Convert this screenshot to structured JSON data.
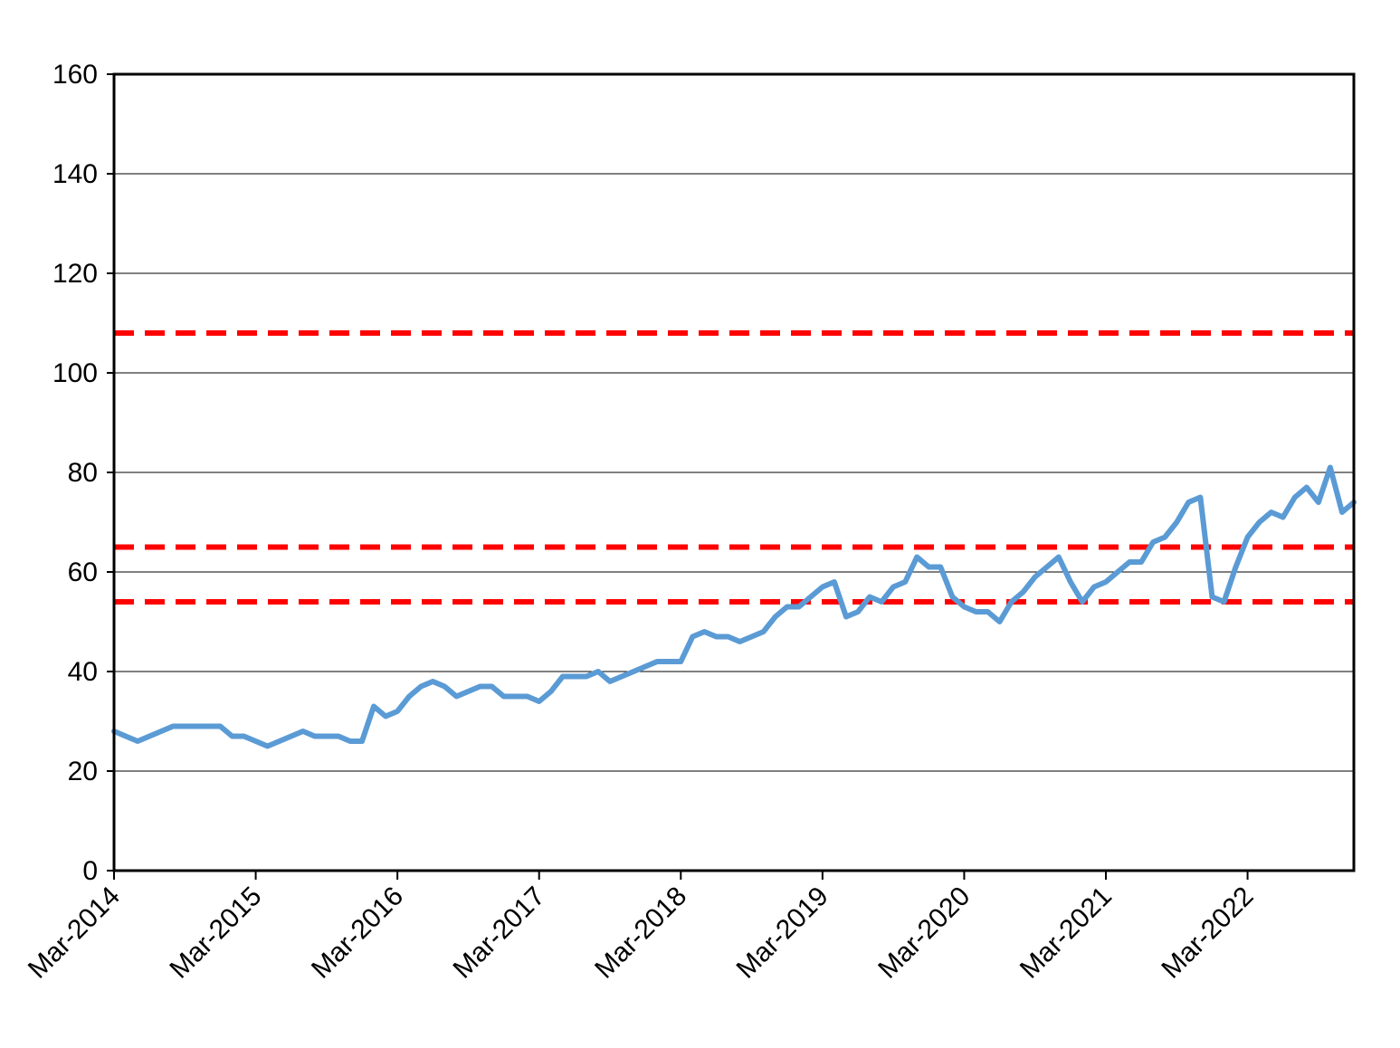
{
  "chart_data": {
    "type": "line",
    "title": "",
    "xlabel": "",
    "ylabel": "",
    "ylim": [
      0,
      160
    ],
    "y_ticks": [
      0,
      20,
      40,
      60,
      80,
      100,
      120,
      140,
      160
    ],
    "y_tick_labels": [
      "0",
      "20",
      "40",
      "60",
      "80",
      "100",
      "120",
      "140",
      "160"
    ],
    "x_range": [
      "2014-03",
      "2022-12"
    ],
    "x_ticks": [
      "2014-03",
      "2015-03",
      "2016-03",
      "2017-03",
      "2018-03",
      "2019-03",
      "2020-03",
      "2021-03",
      "2022-03"
    ],
    "x_tick_labels": [
      "Mar-2014",
      "Mar-2015",
      "Mar-2016",
      "Mar-2017",
      "Mar-2018",
      "Mar-2019",
      "Mar-2020",
      "Mar-2021",
      "Mar-2022"
    ],
    "grid": "horizontal",
    "legend": "none",
    "series": [
      {
        "color": "#5b9bd5",
        "points": [
          [
            "2014-03",
            28
          ],
          [
            "2014-04",
            27
          ],
          [
            "2014-05",
            26
          ],
          [
            "2014-06",
            27
          ],
          [
            "2014-07",
            28
          ],
          [
            "2014-08",
            29
          ],
          [
            "2014-09",
            29
          ],
          [
            "2014-10",
            29
          ],
          [
            "2014-11",
            29
          ],
          [
            "2014-12",
            29
          ],
          [
            "2015-01",
            27
          ],
          [
            "2015-02",
            27
          ],
          [
            "2015-03",
            26
          ],
          [
            "2015-04",
            25
          ],
          [
            "2015-05",
            26
          ],
          [
            "2015-06",
            27
          ],
          [
            "2015-07",
            28
          ],
          [
            "2015-08",
            27
          ],
          [
            "2015-09",
            27
          ],
          [
            "2015-10",
            27
          ],
          [
            "2015-11",
            26
          ],
          [
            "2015-12",
            26
          ],
          [
            "2016-01",
            33
          ],
          [
            "2016-02",
            31
          ],
          [
            "2016-03",
            32
          ],
          [
            "2016-04",
            35
          ],
          [
            "2016-05",
            37
          ],
          [
            "2016-06",
            38
          ],
          [
            "2016-07",
            37
          ],
          [
            "2016-08",
            35
          ],
          [
            "2016-09",
            36
          ],
          [
            "2016-10",
            37
          ],
          [
            "2016-11",
            37
          ],
          [
            "2016-12",
            35
          ],
          [
            "2017-01",
            35
          ],
          [
            "2017-02",
            35
          ],
          [
            "2017-03",
            34
          ],
          [
            "2017-04",
            36
          ],
          [
            "2017-05",
            39
          ],
          [
            "2017-06",
            39
          ],
          [
            "2017-07",
            39
          ],
          [
            "2017-08",
            40
          ],
          [
            "2017-09",
            38
          ],
          [
            "2017-10",
            39
          ],
          [
            "2017-11",
            40
          ],
          [
            "2017-12",
            41
          ],
          [
            "2018-01",
            42
          ],
          [
            "2018-02",
            42
          ],
          [
            "2018-03",
            42
          ],
          [
            "2018-04",
            47
          ],
          [
            "2018-05",
            48
          ],
          [
            "2018-06",
            47
          ],
          [
            "2018-07",
            47
          ],
          [
            "2018-08",
            46
          ],
          [
            "2018-09",
            47
          ],
          [
            "2018-10",
            48
          ],
          [
            "2018-11",
            51
          ],
          [
            "2018-12",
            53
          ],
          [
            "2019-01",
            53
          ],
          [
            "2019-02",
            55
          ],
          [
            "2019-03",
            57
          ],
          [
            "2019-04",
            58
          ],
          [
            "2019-05",
            51
          ],
          [
            "2019-06",
            52
          ],
          [
            "2019-07",
            55
          ],
          [
            "2019-08",
            54
          ],
          [
            "2019-09",
            57
          ],
          [
            "2019-10",
            58
          ],
          [
            "2019-11",
            63
          ],
          [
            "2019-12",
            61
          ],
          [
            "2020-01",
            61
          ],
          [
            "2020-02",
            55
          ],
          [
            "2020-03",
            53
          ],
          [
            "2020-04",
            52
          ],
          [
            "2020-05",
            52
          ],
          [
            "2020-06",
            50
          ],
          [
            "2020-07",
            54
          ],
          [
            "2020-08",
            56
          ],
          [
            "2020-09",
            59
          ],
          [
            "2020-10",
            61
          ],
          [
            "2020-11",
            63
          ],
          [
            "2020-12",
            58
          ],
          [
            "2021-01",
            54
          ],
          [
            "2021-02",
            57
          ],
          [
            "2021-03",
            58
          ],
          [
            "2021-04",
            60
          ],
          [
            "2021-05",
            62
          ],
          [
            "2021-06",
            62
          ],
          [
            "2021-07",
            66
          ],
          [
            "2021-08",
            67
          ],
          [
            "2021-09",
            70
          ],
          [
            "2021-10",
            74
          ],
          [
            "2021-11",
            75
          ],
          [
            "2021-12",
            55
          ],
          [
            "2022-01",
            54
          ],
          [
            "2022-02",
            61
          ],
          [
            "2022-03",
            67
          ],
          [
            "2022-04",
            70
          ],
          [
            "2022-05",
            72
          ],
          [
            "2022-06",
            71
          ],
          [
            "2022-07",
            75
          ],
          [
            "2022-08",
            77
          ],
          [
            "2022-09",
            74
          ],
          [
            "2022-10",
            81
          ],
          [
            "2022-11",
            72
          ],
          [
            "2022-12",
            74
          ]
        ]
      }
    ],
    "reference_lines": [
      {
        "y": 108,
        "color": "#ff0000",
        "style": "dashed"
      },
      {
        "y": 65,
        "color": "#ff0000",
        "style": "dashed"
      },
      {
        "y": 54,
        "color": "#ff0000",
        "style": "dashed"
      }
    ]
  }
}
